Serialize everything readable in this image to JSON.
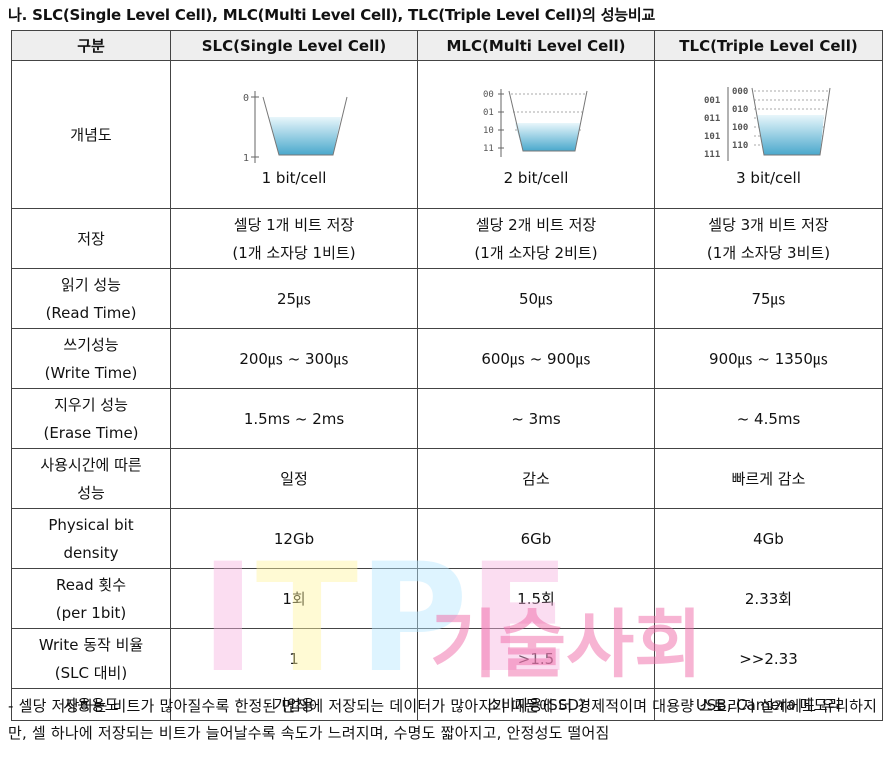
{
  "title": "나. SLC(Single Level Cell), MLC(Multi Level Cell), TLC(Triple Level Cell)의 성능비교",
  "table": {
    "headers": [
      "구분",
      "SLC(Single Level Cell)",
      "MLC(Multi Level Cell)",
      "TLC(Triple Level Cell)"
    ],
    "concept_label": "개념도",
    "diagrams": {
      "slc": {
        "levels": [
          "0",
          "1"
        ],
        "caption": "1 bit/cell"
      },
      "mlc": {
        "levels": [
          "00",
          "01",
          "10",
          "11"
        ],
        "caption": "2 bit/cell"
      },
      "tlc": {
        "left_levels": [
          "001",
          "011",
          "101",
          "111"
        ],
        "right_levels": [
          "000",
          "010",
          "100",
          "110"
        ],
        "caption": "3 bit/cell"
      }
    },
    "rows": [
      {
        "label": [
          "저장"
        ],
        "slc": [
          "셀당 1개 비트 저장",
          "(1개 소자당 1비트)"
        ],
        "mlc": [
          "셀당 2개 비트 저장",
          "(1개 소자당 2비트)"
        ],
        "tlc": [
          "셀당 3개 비트 저장",
          "(1개 소자당 3비트)"
        ]
      },
      {
        "label": [
          "읽기 성능",
          "(Read Time)"
        ],
        "slc": [
          "25㎲"
        ],
        "mlc": [
          "50㎲"
        ],
        "tlc": [
          "75㎲"
        ]
      },
      {
        "label": [
          "쓰기성능",
          "(Write Time)"
        ],
        "slc": [
          "200㎲ ~ 300㎲"
        ],
        "mlc": [
          "600㎲ ~ 900㎲"
        ],
        "tlc": [
          "900㎲ ~ 1350㎲"
        ]
      },
      {
        "label": [
          "지우기 성능",
          "(Erase Time)"
        ],
        "slc": [
          "1.5ms ~ 2ms"
        ],
        "mlc": [
          "~ 3ms"
        ],
        "tlc": [
          "~ 4.5ms"
        ]
      },
      {
        "label": [
          "사용시간에 따른",
          "성능"
        ],
        "slc": [
          "일정"
        ],
        "mlc": [
          "감소"
        ],
        "tlc": [
          "빠르게 감소"
        ]
      },
      {
        "label": [
          "Physical bit",
          "density"
        ],
        "slc": [
          "12Gb"
        ],
        "mlc": [
          "6Gb"
        ],
        "tlc": [
          "4Gb"
        ]
      },
      {
        "label": [
          "Read 횟수",
          "(per 1bit)"
        ],
        "slc": [
          "1회"
        ],
        "mlc": [
          "1.5회"
        ],
        "tlc": [
          "2.33회"
        ]
      },
      {
        "label": [
          "Write 동작 비율",
          "(SLC 대비)"
        ],
        "slc": [
          "1"
        ],
        "mlc": [
          ">1.5"
        ],
        "tlc": [
          ">>2.33"
        ]
      },
      {
        "label": [
          "사용용도"
        ],
        "slc": [
          "기업용"
        ],
        "mlc": [
          "소비자용(SSD)"
        ],
        "tlc": [
          "USB, Camera 메모리"
        ]
      }
    ]
  },
  "note": "- 셀당 저장하는 비트가 많아질수록 한정된 면적에 저장되는 데이터가 많아지기 때문에 더 경제적이며 대용량 스토리지 설계에도 유리하지만, 셀 하나에 저장되는 비트가 늘어날수록 속도가 느려지며, 수명도 짧아지고, 안정성도 떨어짐",
  "watermark": {
    "latin": "ITPE",
    "korean": "기술사회",
    "colors": [
      "#f7b3e0",
      "#fff3a0",
      "#b5e6ff",
      "#f06aa8"
    ]
  }
}
